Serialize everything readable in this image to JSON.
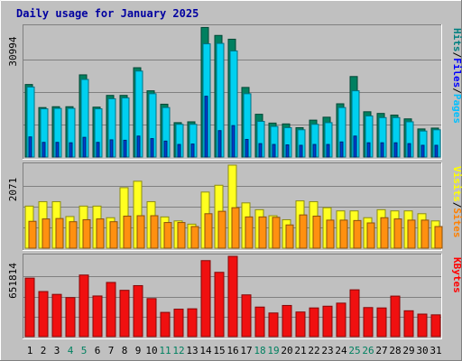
{
  "chart_data": {
    "type": "bar",
    "title": "Daily usage for January 2025",
    "categories": [
      "1",
      "2",
      "3",
      "4",
      "5",
      "6",
      "7",
      "8",
      "9",
      "10",
      "11",
      "12",
      "13",
      "14",
      "15",
      "16",
      "17",
      "18",
      "19",
      "20",
      "21",
      "22",
      "23",
      "24",
      "25",
      "26",
      "27",
      "28",
      "29",
      "30",
      "31"
    ],
    "weekend_days": [
      "4",
      "5",
      "11",
      "12",
      "18",
      "19",
      "25",
      "26"
    ],
    "panels": [
      {
        "id": "hits-files-pages",
        "max_label": "30994",
        "ymax": 30994,
        "legend": [
          "Pages",
          "Files",
          "Hits"
        ],
        "legend_colors": [
          "#00c0ff",
          "#0000ff",
          "#008080"
        ],
        "series": [
          {
            "name": "Hits",
            "color": "#008060",
            "values": [
              17300,
              11800,
              12000,
              12000,
              19600,
              11900,
              14700,
              14700,
              21300,
              15800,
              12600,
              8200,
              8400,
              30900,
              29000,
              28100,
              16600,
              10200,
              8100,
              7900,
              7000,
              8800,
              9500,
              12700,
              19200,
              10800,
              10400,
              10000,
              9100,
              6700,
              6900
            ]
          },
          {
            "name": "Files",
            "color": "#00d0f0",
            "values": [
              16700,
              11500,
              11600,
              11600,
              18500,
              11500,
              13900,
              14100,
              20500,
              15100,
              11800,
              7800,
              7800,
              27000,
              27100,
              25300,
              15100,
              8500,
              7300,
              7000,
              6500,
              7800,
              8200,
              11800,
              15800,
              9800,
              9400,
              9400,
              8400,
              6200,
              6500
            ]
          },
          {
            "name": "Pages",
            "color": "#0040d0",
            "values": [
              4800,
              3500,
              3500,
              3400,
              4700,
              3500,
              4100,
              4000,
              5000,
              4400,
              3800,
              3000,
              3100,
              14500,
              6300,
              7500,
              4200,
              3200,
              3000,
              2900,
              2800,
              3000,
              3000,
              3600,
              5000,
              3400,
              3400,
              3400,
              3200,
              2800,
              2800
            ]
          }
        ]
      },
      {
        "id": "visits-sites",
        "max_label": "2071",
        "ymax": 2071,
        "legend": [
          "Sites",
          "Visits"
        ],
        "legend_colors": [
          "#ff8000",
          "#ffff00"
        ],
        "series": [
          {
            "name": "Visits",
            "color": "#ffff20",
            "values": [
              1050,
              1160,
              1160,
              790,
              1050,
              1050,
              760,
              1510,
              1670,
              1160,
              780,
              680,
              600,
              1400,
              1570,
              2071,
              1130,
              960,
              810,
              710,
              1180,
              1160,
              1010,
              930,
              930,
              760,
              960,
              930,
              930,
              860,
              680
            ]
          },
          {
            "name": "Sites",
            "color": "#ff9010",
            "values": [
              670,
              730,
              740,
              660,
              710,
              730,
              660,
              800,
              810,
              810,
              640,
              640,
              540,
              860,
              920,
              1010,
              780,
              780,
              770,
              580,
              830,
              800,
              700,
              700,
              690,
              630,
              760,
              730,
              700,
              700,
              540
            ]
          }
        ]
      },
      {
        "id": "kbytes",
        "max_label": "651814",
        "ymax": 651814,
        "legend": [
          "KBytes"
        ],
        "legend_colors": [
          "#ff0000"
        ],
        "series": [
          {
            "name": "KBytes",
            "color": "#f01010",
            "values": [
              475000,
              366000,
              343000,
              317000,
              500000,
              330000,
              440000,
              376000,
              414000,
              309000,
              197000,
              223000,
              226000,
              617000,
              522000,
              651814,
              339000,
              240000,
              192000,
              253000,
              200000,
              233000,
              247000,
              272000,
              380000,
              236000,
              233000,
              329000,
              210000,
              183000,
              177000
            ]
          }
        ]
      }
    ]
  }
}
